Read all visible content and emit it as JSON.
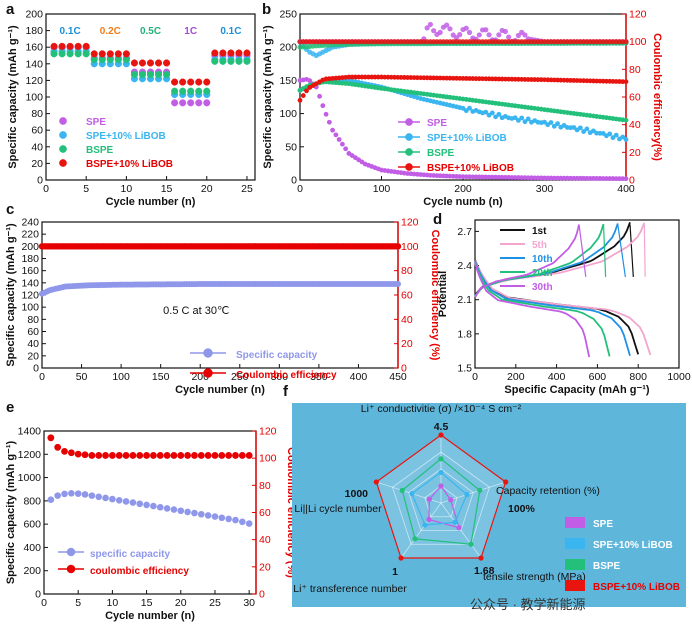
{
  "colors": {
    "spe": "#c25de6",
    "spe_lib": "#3ab5f0",
    "bspe": "#22c07a",
    "bspe_lib": "#e8140f",
    "red": "#e60000",
    "lav": "#8f97ea",
    "panelbg": "#5fb6db"
  },
  "watermark": "公众号 · 教学新能源",
  "chart_data": [
    {
      "id": "a",
      "panel": "a",
      "type": "scatter",
      "xlabel": "Cycle number (n)",
      "ylabel": "Specific capacity (mAh g⁻¹)",
      "xlim": [
        0,
        26
      ],
      "ylim": [
        0,
        200
      ],
      "xticks": [
        0,
        5,
        10,
        15,
        20,
        25
      ],
      "yticks": [
        0,
        20,
        40,
        60,
        80,
        100,
        120,
        140,
        160,
        180,
        200
      ],
      "rates": [
        {
          "label": "0.1C",
          "x": 3,
          "color": "#1a8fd9"
        },
        {
          "label": "0.2C",
          "x": 8,
          "color": "#f07c1b"
        },
        {
          "label": "0.5C",
          "x": 13,
          "color": "#22b07a"
        },
        {
          "label": "1C",
          "x": 18,
          "color": "#a64ad9"
        },
        {
          "label": "0.1C",
          "x": 23,
          "color": "#1a8fd9"
        }
      ],
      "legend": [
        "SPE",
        "SPE+10% LiBOB",
        "BSPE",
        "BSPE+10% LiBOB"
      ],
      "series": [
        {
          "name": "SPE",
          "color": "spe",
          "levels": [
            160,
            147,
            130,
            93,
            150
          ]
        },
        {
          "name": "SPE+10% LiBOB",
          "color": "spe_lib",
          "levels": [
            155,
            140,
            122,
            103,
            145
          ]
        },
        {
          "name": "BSPE",
          "color": "bspe",
          "levels": [
            152,
            145,
            127,
            107,
            143
          ]
        },
        {
          "name": "BSPE+10% LiBOB",
          "color": "bspe_lib",
          "levels": [
            161,
            152,
            141,
            118,
            153
          ]
        }
      ]
    },
    {
      "id": "b",
      "panel": "b",
      "type": "line",
      "xlabel": "Cycle numb (n)",
      "ylabel": "Specific capacity (mAh g⁻¹)",
      "ylabel_right": "Coulombic efficiency(%)",
      "xlim": [
        0,
        400
      ],
      "ylim": [
        0,
        250
      ],
      "y2lim": [
        0,
        120
      ],
      "xticks": [
        0,
        100,
        200,
        300,
        400
      ],
      "yticks": [
        0,
        50,
        100,
        150,
        200,
        250
      ],
      "y2ticks": [
        0,
        20,
        40,
        60,
        80,
        100,
        120
      ],
      "legend": [
        "SPE",
        "SPE+10% LiBOB",
        "BSPE",
        "BSPE+10% LiBOB"
      ],
      "series": [
        {
          "name": "SPE",
          "color": "spe",
          "x": [
            0,
            10,
            20,
            30,
            40,
            60,
            80,
            100,
            130,
            160,
            200,
            250,
            300,
            400
          ],
          "y": [
            150,
            152,
            140,
            105,
            75,
            40,
            24,
            15,
            10,
            7,
            5,
            4,
            3,
            2
          ]
        },
        {
          "name": "SPE+10% LiBOB",
          "color": "spe_lib",
          "x": [
            0,
            10,
            30,
            60,
            100,
            150,
            200,
            250,
            300,
            350,
            400
          ],
          "y": [
            135,
            140,
            150,
            150,
            140,
            122,
            108,
            95,
            86,
            75,
            62
          ]
        },
        {
          "name": "BSPE",
          "color": "bspe",
          "x": [
            0,
            10,
            30,
            60,
            100,
            150,
            200,
            250,
            300,
            350,
            400
          ],
          "y": [
            135,
            142,
            148,
            145,
            138,
            130,
            122,
            114,
            106,
            98,
            90
          ]
        },
        {
          "name": "BSPE+10% LiBOB",
          "color": "bspe_lib",
          "x": [
            0,
            10,
            30,
            60,
            100,
            200,
            300,
            400
          ],
          "y": [
            120,
            138,
            152,
            155,
            155,
            153,
            151,
            148
          ]
        }
      ],
      "ce_series": [
        {
          "name": "SPE",
          "color": "spe",
          "x": [
            0,
            100,
            150,
            160,
            180,
            200,
            230,
            260,
            300,
            400
          ],
          "y": [
            100,
            100,
            100,
            110,
            108,
            106,
            105,
            104,
            100,
            100
          ]
        },
        {
          "name": "SPE+10% LiBOB",
          "color": "spe_lib",
          "x": [
            0,
            10,
            20,
            40,
            60,
            100,
            400
          ],
          "y": [
            100,
            93,
            90,
            96,
            98,
            99,
            99
          ]
        },
        {
          "name": "BSPE",
          "color": "bspe",
          "x": [
            0,
            20,
            50,
            100,
            400
          ],
          "y": [
            96,
            97,
            98,
            98.5,
            99
          ]
        },
        {
          "name": "BSPE+10% LiBOB",
          "color": "bspe_lib",
          "x": [
            0,
            5,
            20,
            50,
            400
          ],
          "y": [
            100,
            100,
            100,
            100,
            100
          ]
        }
      ]
    },
    {
      "id": "c",
      "panel": "c",
      "type": "scatter",
      "xlabel": "Cycle number (n)",
      "ylabel": "Specific capacity (mAh g⁻¹)",
      "ylabel_right": "Coulombic efficiency (%)",
      "annotation": "0.5 C at 30℃",
      "xlim": [
        0,
        450
      ],
      "ylim": [
        0,
        240
      ],
      "y2lim": [
        0,
        120
      ],
      "xticks": [
        0,
        50,
        100,
        150,
        200,
        250,
        300,
        350,
        400,
        450
      ],
      "yticks": [
        0,
        20,
        40,
        60,
        80,
        100,
        120,
        140,
        160,
        180,
        200,
        220,
        240
      ],
      "y2ticks": [
        0,
        20,
        40,
        60,
        80,
        100,
        120
      ],
      "legend": [
        "Specific capacity",
        "Coulombic efficiency"
      ],
      "capacity": {
        "x": [
          0,
          10,
          30,
          60,
          100,
          200,
          300,
          450
        ],
        "y": [
          122,
          128,
          134,
          136,
          137,
          138,
          138,
          138
        ]
      },
      "efficiency": {
        "x": [
          0,
          450
        ],
        "y": [
          100,
          100
        ]
      }
    },
    {
      "id": "d",
      "panel": "d",
      "type": "line",
      "xlabel": "Specific Capacity (mAh g⁻¹)",
      "ylabel": "Potential",
      "xlim": [
        0,
        1000
      ],
      "ylim": [
        1.5,
        2.8
      ],
      "xticks": [
        0,
        200,
        400,
        600,
        800,
        1000
      ],
      "yticks": [
        1.5,
        1.8,
        2.1,
        2.4,
        2.7
      ],
      "legend": [
        "1st",
        "5th",
        "10th",
        "20th",
        "30th"
      ],
      "series": [
        {
          "name": "1st",
          "color": "#111111",
          "charge_end": 760,
          "dis_end": 800
        },
        {
          "name": "5th",
          "color": "#f2a6cf",
          "charge_end": 830,
          "dis_end": 860
        },
        {
          "name": "10th",
          "color": "#1e90e6",
          "charge_end": 700,
          "dis_end": 760
        },
        {
          "name": "20th",
          "color": "#22c07a",
          "charge_end": 630,
          "dis_end": 660
        },
        {
          "name": "30th",
          "color": "#c25de6",
          "charge_end": 510,
          "dis_end": 560
        }
      ]
    },
    {
      "id": "e",
      "panel": "e",
      "type": "scatter",
      "xlabel": "Cycle number (n)",
      "ylabel": "Specific capacity (mAh g⁻¹)",
      "ylabel_right": "Coulombic efficiency (%)",
      "xlim": [
        0,
        31
      ],
      "ylim": [
        0,
        1400
      ],
      "y2lim": [
        0,
        120
      ],
      "xticks": [
        0,
        5,
        10,
        15,
        20,
        25,
        30
      ],
      "yticks": [
        0,
        200,
        400,
        600,
        800,
        1000,
        1200,
        1400
      ],
      "y2ticks": [
        0,
        20,
        40,
        60,
        80,
        100,
        120
      ],
      "legend": [
        "specific capacity",
        "coulombic efficiency"
      ],
      "capacity": [
        810,
        845,
        860,
        865,
        862,
        855,
        845,
        835,
        825,
        815,
        805,
        795,
        785,
        775,
        765,
        755,
        745,
        735,
        725,
        715,
        705,
        695,
        685,
        675,
        665,
        655,
        645,
        635,
        620,
        605
      ],
      "efficiency": [
        115,
        108,
        105,
        104,
        103,
        102.5,
        102,
        102,
        102,
        102,
        102,
        102,
        102,
        102,
        102,
        102,
        102,
        102,
        102,
        102,
        102,
        102,
        102,
        102,
        102,
        102,
        102,
        102,
        102,
        102
      ]
    },
    {
      "id": "f",
      "panel": "f",
      "type": "radar",
      "axes": [
        "Li⁺ conductivitie (σ) /×10⁻⁴ S cm⁻²",
        "Capacity retention (%)",
        "tensile strength (MPa)",
        "Li⁺ transference number",
        "Li||Li cycle number"
      ],
      "axis_max_labels": [
        "4.5",
        "100%",
        "1.68",
        "1",
        "1000"
      ],
      "legend": [
        "SPE",
        "SPE+10% LiBOB",
        "BSPE",
        "BSPE+10% LiBOB"
      ],
      "series": [
        {
          "name": "SPE",
          "color": "spe",
          "values": [
            0.25,
            0.15,
            0.45,
            0.3,
            0.18
          ]
        },
        {
          "name": "SPE+10% LiBOB",
          "color": "spe_lib",
          "values": [
            0.45,
            0.4,
            0.35,
            0.4,
            0.45
          ]
        },
        {
          "name": "BSPE",
          "color": "bspe",
          "values": [
            0.65,
            0.6,
            0.75,
            0.65,
            0.6
          ]
        },
        {
          "name": "BSPE+10% LiBOB",
          "color": "bspe_lib",
          "values": [
            1,
            1,
            1,
            1,
            1
          ]
        }
      ]
    }
  ]
}
